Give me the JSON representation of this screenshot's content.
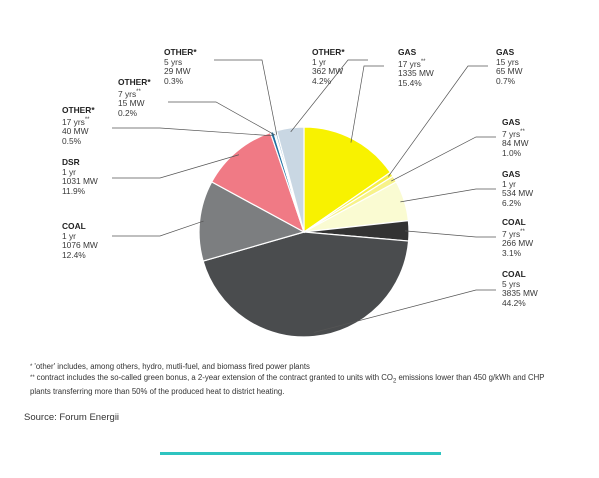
{
  "chart_data": {
    "type": "pie",
    "slices": [
      {
        "category": "GAS",
        "duration": "17 yrs",
        "marker": "**",
        "mw": "1335 MW",
        "pct_text": "15.4%",
        "value": 15.4,
        "color": "#f8f200"
      },
      {
        "category": "GAS",
        "duration": "15 yrs",
        "marker": "",
        "mw": "65 MW",
        "pct_text": "0.7%",
        "value": 0.7,
        "color": "#f6ef4a"
      },
      {
        "category": "GAS",
        "duration": "7 yrs",
        "marker": "**",
        "mw": "84 MW",
        "pct_text": "1.0%",
        "value": 1.0,
        "color": "#f7f28a"
      },
      {
        "category": "GAS",
        "duration": "1 yr",
        "marker": "",
        "mw": "534 MW",
        "pct_text": "6.2%",
        "value": 6.2,
        "color": "#fafbd2"
      },
      {
        "category": "COAL",
        "duration": "7 yrs",
        "marker": "**",
        "mw": "266 MW",
        "pct_text": "3.1%",
        "value": 3.1,
        "color": "#333333"
      },
      {
        "category": "COAL",
        "duration": "5 yrs",
        "marker": "",
        "mw": "3835 MW",
        "pct_text": "44.2%",
        "value": 44.2,
        "color": "#4a4c4e"
      },
      {
        "category": "COAL",
        "duration": "1 yr",
        "marker": "",
        "mw": "1076 MW",
        "pct_text": "12.4%",
        "value": 12.4,
        "color": "#7c7e80"
      },
      {
        "category": "DSR",
        "duration": "1 yr",
        "marker": "",
        "mw": "1031 MW",
        "pct_text": "11.9%",
        "value": 11.9,
        "color": "#f07a85"
      },
      {
        "category": "OTHER*",
        "duration": "17 yrs",
        "marker": "**",
        "mw": "40 MW",
        "pct_text": "0.5%",
        "value": 0.5,
        "color": "#1e6fa0"
      },
      {
        "category": "OTHER*",
        "duration": "7 yrs",
        "marker": "**",
        "mw": "15 MW",
        "pct_text": "0.2%",
        "value": 0.2,
        "color": "#2e9bd0"
      },
      {
        "category": "OTHER*",
        "duration": "5 yrs",
        "marker": "",
        "mw": "29 MW",
        "pct_text": "0.3%",
        "value": 0.3,
        "color": "#8fb8d2"
      },
      {
        "category": "OTHER*",
        "duration": "1 yr",
        "marker": "",
        "mw": "362 MW",
        "pct_text": "4.2%",
        "value": 4.2,
        "color": "#c9d7e3"
      }
    ]
  },
  "footnotes": {
    "note1": "'other' includes, among others, hydro, mutli-fuel, and biomass fired power plants",
    "note2_a": "contract includes the so-called green bonus, a 2-year extension of the contract granted to units with CO",
    "note2_sub": "2",
    "note2_b": " emissions lower than 450 g/kWh and CHP plants transferring more than 50% of the produced heat to district heating."
  },
  "source": "Source: Forum Energii",
  "colors": {
    "leader": "#555555",
    "accent_rule": "#2ec4c0"
  }
}
